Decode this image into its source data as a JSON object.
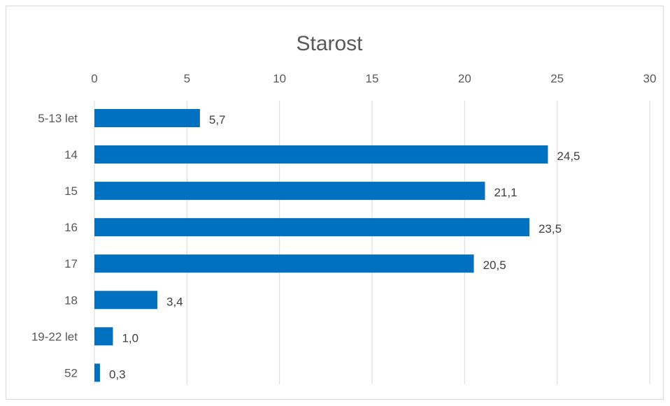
{
  "chart_data": {
    "type": "bar",
    "orientation": "horizontal",
    "title": "Starost",
    "categories": [
      "5-13 let",
      "14",
      "15",
      "16",
      "17",
      "18",
      "19-22 let",
      "52"
    ],
    "values": [
      5.7,
      24.5,
      21.1,
      23.5,
      20.5,
      3.4,
      1.0,
      0.3
    ],
    "data_labels": [
      "5,7",
      "24,5",
      "21,1",
      "23,5",
      "20,5",
      "3,4",
      "1,0",
      "0,3"
    ],
    "x_ticks": [
      "0",
      "5",
      "10",
      "15",
      "20",
      "25",
      "30"
    ],
    "xlim": [
      0,
      30
    ],
    "x_axis_position": "top",
    "grid": true,
    "bar_color": "#0070c0",
    "legend": "none"
  }
}
